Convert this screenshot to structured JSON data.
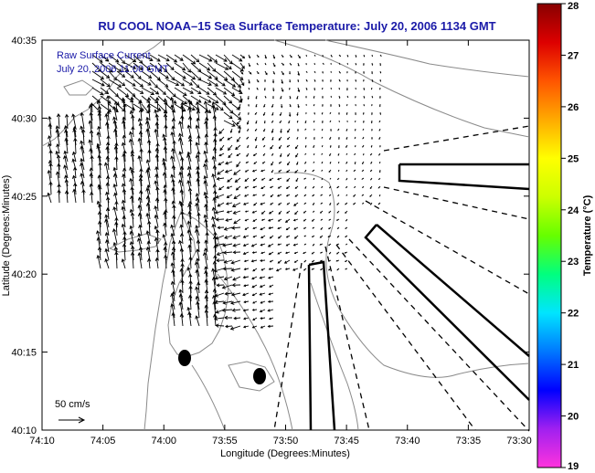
{
  "title": "RU COOL  NOAA–15  Sea Surface Temperature:  July 20, 2006 1134 GMT",
  "legend": {
    "line1": "Raw Surface Current",
    "line2": "July 20, 2006 11:00 GMT",
    "scale_label": "50 cm/s"
  },
  "axes": {
    "xlabel": "Longitude (Degrees:Minutes)",
    "ylabel": "Latitude (Degrees:Minutes)",
    "x_ticks": [
      "74:10",
      "74:05",
      "74:00",
      "73:55",
      "73:50",
      "73:45",
      "73:40",
      "73:35",
      "73:30"
    ],
    "y_ticks": [
      "40:35",
      "40:30",
      "40:25",
      "40:20",
      "40:15",
      "40:10"
    ]
  },
  "colorbar": {
    "label": "Temperature (°C)",
    "ticks": [
      "28",
      "27",
      "26",
      "25",
      "24",
      "23",
      "22",
      "21",
      "20",
      "19"
    ],
    "colors": [
      "#ff33dd",
      "#a020f0",
      "#0000ff",
      "#0078ff",
      "#00e5ff",
      "#00ff7f",
      "#66ff00",
      "#ccff00",
      "#ffff00",
      "#ffaa00",
      "#ff5500",
      "#dd0000",
      "#880000"
    ]
  },
  "colors": {
    "title": "#1a1aa8",
    "contour": "#8a8a8a",
    "coast": "#8a8a8a"
  }
}
